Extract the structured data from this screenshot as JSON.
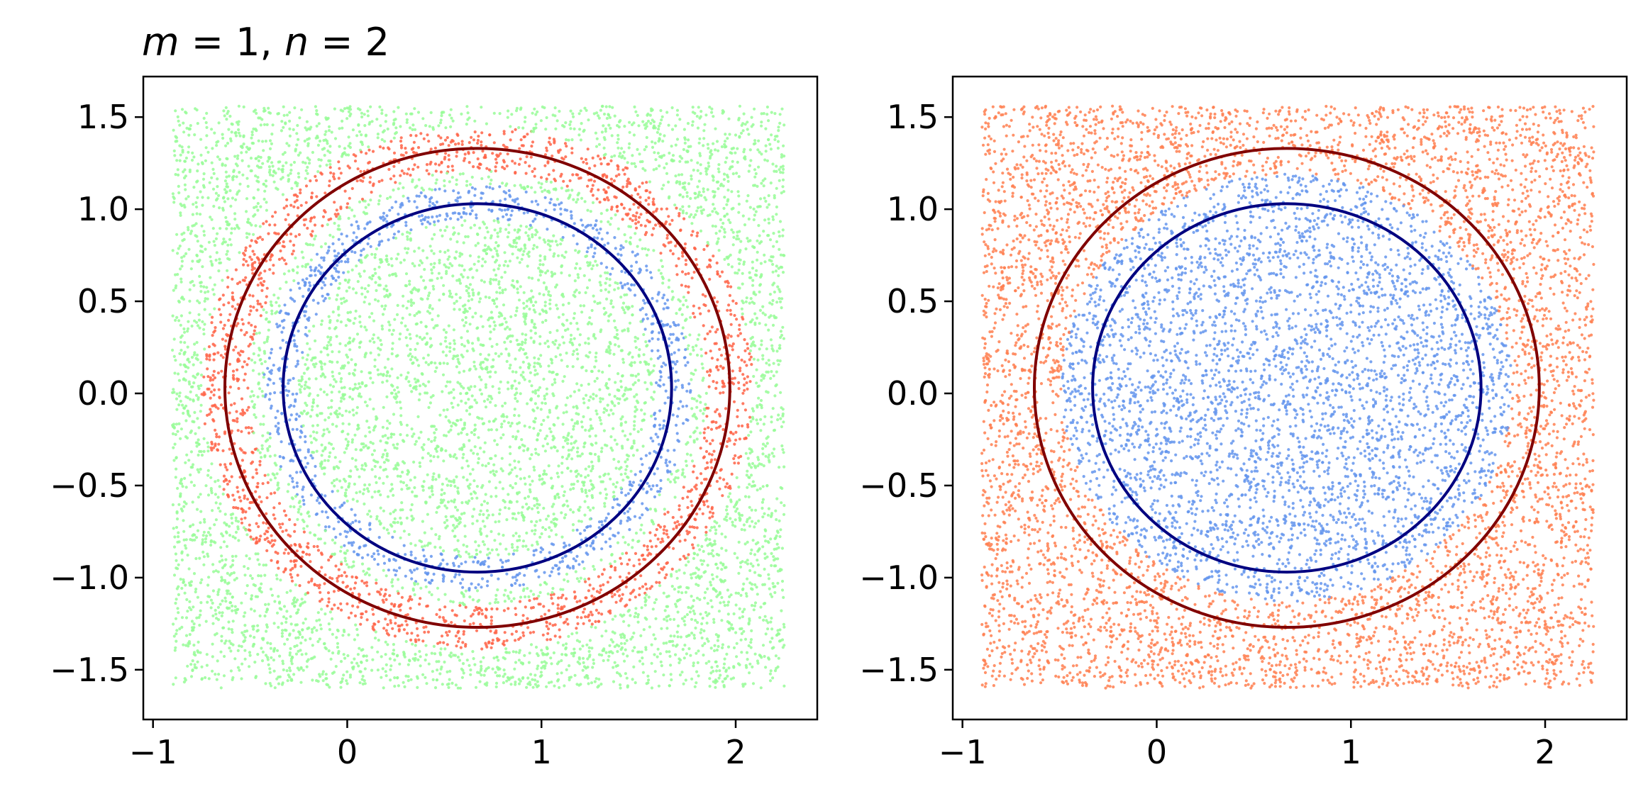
{
  "chart_data": [
    {
      "type": "scatter",
      "title": {
        "m_symbol": "m",
        "eq1": " = 1, ",
        "n_symbol": "n",
        "eq2": " = 2"
      },
      "xlim": [
        -1.05,
        2.42
      ],
      "ylim": [
        -1.77,
        1.72
      ],
      "xticks": [
        -1,
        0,
        1,
        2
      ],
      "xtick_labels": [
        "−1",
        "0",
        "1",
        "2"
      ],
      "yticks": [
        -1.5,
        -1.0,
        -0.5,
        0.0,
        0.5,
        1.0,
        1.5
      ],
      "ytick_labels": [
        "−1.5",
        "−1.0",
        "−0.5",
        "0.0",
        "0.5",
        "1.0",
        "1.5"
      ],
      "grid": false,
      "sample_domain": {
        "x": [
          -0.9,
          2.25
        ],
        "y": [
          -1.6,
          1.56
        ]
      },
      "center": [
        0.67,
        0.03
      ],
      "colors": {
        "green": "#98fb98",
        "red": "#ff6347",
        "blue": "#6495ed"
      },
      "regions": [
        {
          "color": "blue",
          "r_in": 0.92,
          "r_out": 1.1
        },
        {
          "color": "red",
          "r_in": 1.18,
          "r_out": 1.42
        }
      ],
      "background_color": "green",
      "circles": [
        {
          "r": 1.0,
          "color": "#000080"
        },
        {
          "r": 1.3,
          "color": "#800000"
        }
      ]
    },
    {
      "type": "scatter",
      "xlim": [
        -1.05,
        2.42
      ],
      "ylim": [
        -1.77,
        1.72
      ],
      "xticks": [
        -1,
        0,
        1,
        2
      ],
      "xtick_labels": [
        "−1",
        "0",
        "1",
        "2"
      ],
      "yticks": [
        -1.5,
        -1.0,
        -0.5,
        0.0,
        0.5,
        1.0,
        1.5
      ],
      "ytick_labels": [
        "−1.5",
        "−1.0",
        "−0.5",
        "0.0",
        "0.5",
        "1.0",
        "1.5"
      ],
      "grid": false,
      "sample_domain": {
        "x": [
          -0.9,
          2.25
        ],
        "y": [
          -1.6,
          1.56
        ]
      },
      "center": [
        0.67,
        0.03
      ],
      "colors": {
        "red": "#ff7f50",
        "blue": "#6495ed"
      },
      "regions": [
        {
          "color": "blue",
          "r_in": 0.0,
          "r_out": 1.16
        }
      ],
      "background_color": "red",
      "circles": [
        {
          "r": 1.0,
          "color": "#000080"
        },
        {
          "r": 1.3,
          "color": "#800000"
        }
      ]
    }
  ]
}
